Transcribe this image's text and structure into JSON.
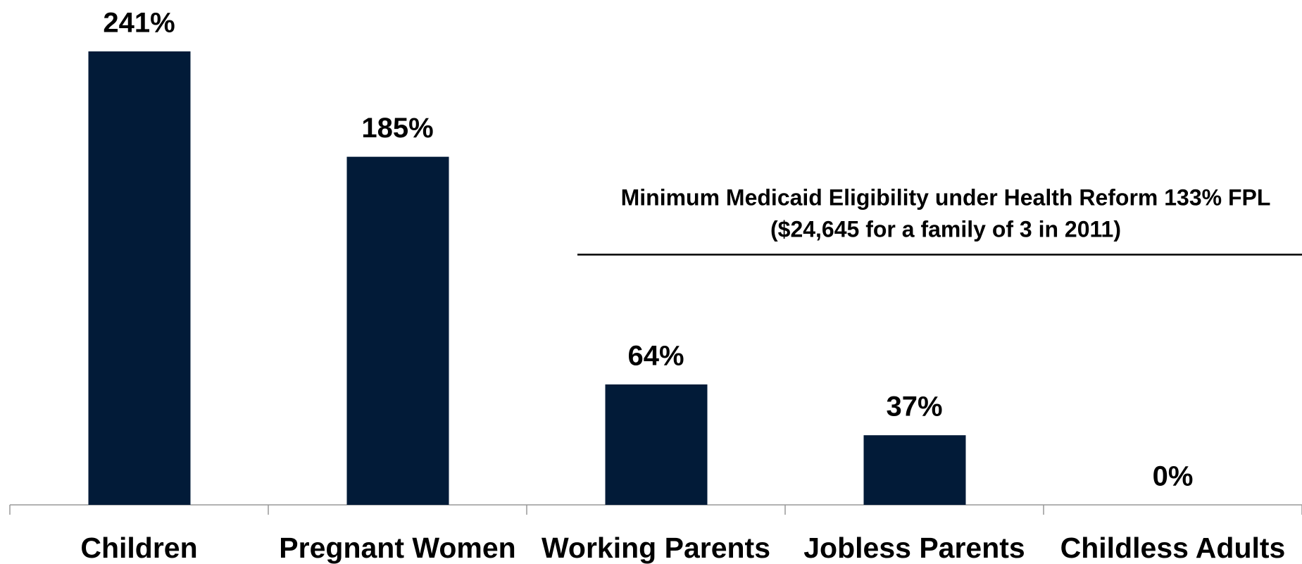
{
  "chart_data": {
    "type": "bar",
    "categories": [
      "Children",
      "Pregnant Women",
      "Working Parents",
      "Jobless Parents",
      "Childless Adults"
    ],
    "values": [
      241,
      185,
      64,
      37,
      0
    ],
    "value_labels": [
      "241%",
      "185%",
      "64%",
      "37%",
      "0%"
    ],
    "color": "#021b38",
    "ylim": [
      0,
      241
    ],
    "reference_value": 133,
    "annotation": [
      "Minimum Medicaid Eligibility under Health Reform 133% FPL",
      "($24,645 for a family of 3 in 2011)"
    ]
  }
}
